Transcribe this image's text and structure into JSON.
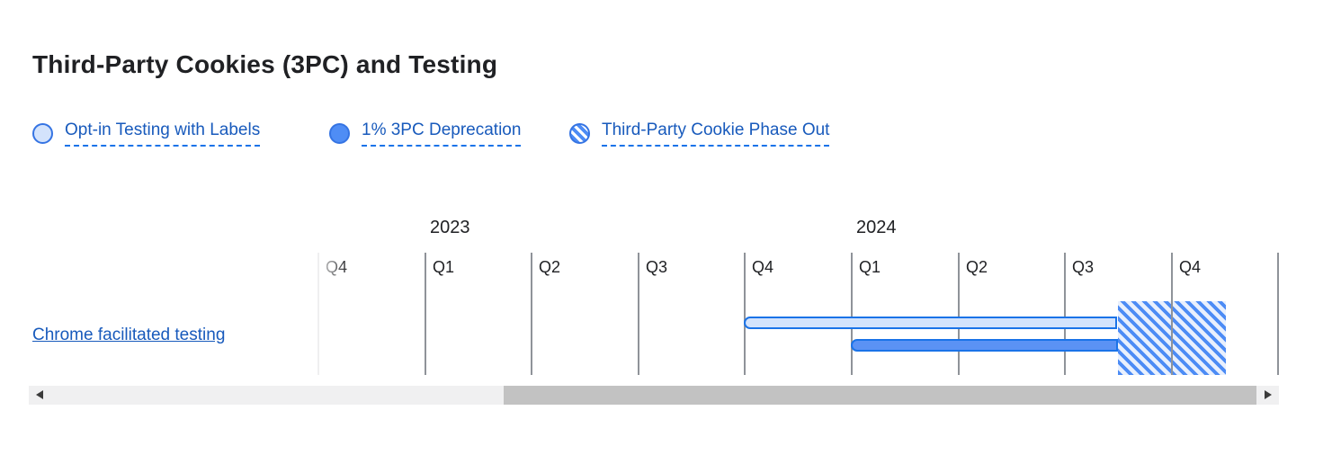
{
  "title": "Third-Party Cookies (3PC) and Testing",
  "legend": {
    "items": [
      {
        "label": "Opt-in Testing with Labels",
        "style": "light",
        "icon": "light-blue-circle-icon"
      },
      {
        "label": "1% 3PC Deprecation",
        "style": "solid",
        "icon": "solid-blue-circle-icon"
      },
      {
        "label": "Third-Party Cookie Phase Out",
        "style": "striped",
        "icon": "striped-blue-circle-icon"
      }
    ]
  },
  "chart_data": {
    "type": "gantt",
    "title": "Third-Party Cookies (3PC) and Testing",
    "x_domain": "2022 Q4 - 2025 Q1",
    "quarters": [
      "Q4",
      "Q1",
      "Q2",
      "Q3",
      "Q4",
      "Q1",
      "Q2",
      "Q3",
      "Q4"
    ],
    "quarters_full": [
      "2022 Q4",
      "2023 Q1",
      "2023 Q2",
      "2023 Q3",
      "2023 Q4",
      "2024 Q1",
      "2024 Q2",
      "2024 Q3",
      "2024 Q4"
    ],
    "extra_unlabeled_ticks": 1,
    "years": [
      {
        "label": "2023",
        "at_quarter_index": 1
      },
      {
        "label": "2024",
        "at_quarter_index": 5
      }
    ],
    "grid": "quarter ticks only",
    "legend_position": "top",
    "rows": [
      {
        "label": "Chrome facilitated testing",
        "bars": [
          {
            "series": "Opt-in Testing with Labels",
            "style": "light",
            "start_quarter_index": 4.0,
            "end_quarter_index": 7.5,
            "start": "2023 Q4",
            "end": "mid 2024 Q3"
          },
          {
            "series": "1% 3PC Deprecation",
            "style": "solid",
            "start_quarter_index": 5.0,
            "end_quarter_index": 7.5,
            "start": "2024 Q1",
            "end": "mid 2024 Q3"
          }
        ],
        "regions": [
          {
            "series": "Third-Party Cookie Phase Out",
            "style": "striped",
            "start_quarter_index": 7.5,
            "end_quarter_index": 8.51,
            "start": "mid 2024 Q3",
            "end": "mid 2024 Q4"
          }
        ]
      }
    ]
  },
  "colors": {
    "text_dark": "#202124",
    "link_blue": "#185abc",
    "accent_blue_border": "#1a73e8",
    "solid_bar_fill": "#5b92f4",
    "light_bar_fill": "#d3e3fc",
    "stripe_blue": "#4d8cf5",
    "stripe_background": "#e9f0fd",
    "tick_gray": "#8f9399",
    "scrollbar_track": "#f0f0f1",
    "scrollbar_thumb": "#c2c2c2"
  },
  "scrollbar": {
    "orientation": "horizontal",
    "left_arrow_icon": "triangle-left",
    "right_arrow_icon": "triangle-right"
  }
}
